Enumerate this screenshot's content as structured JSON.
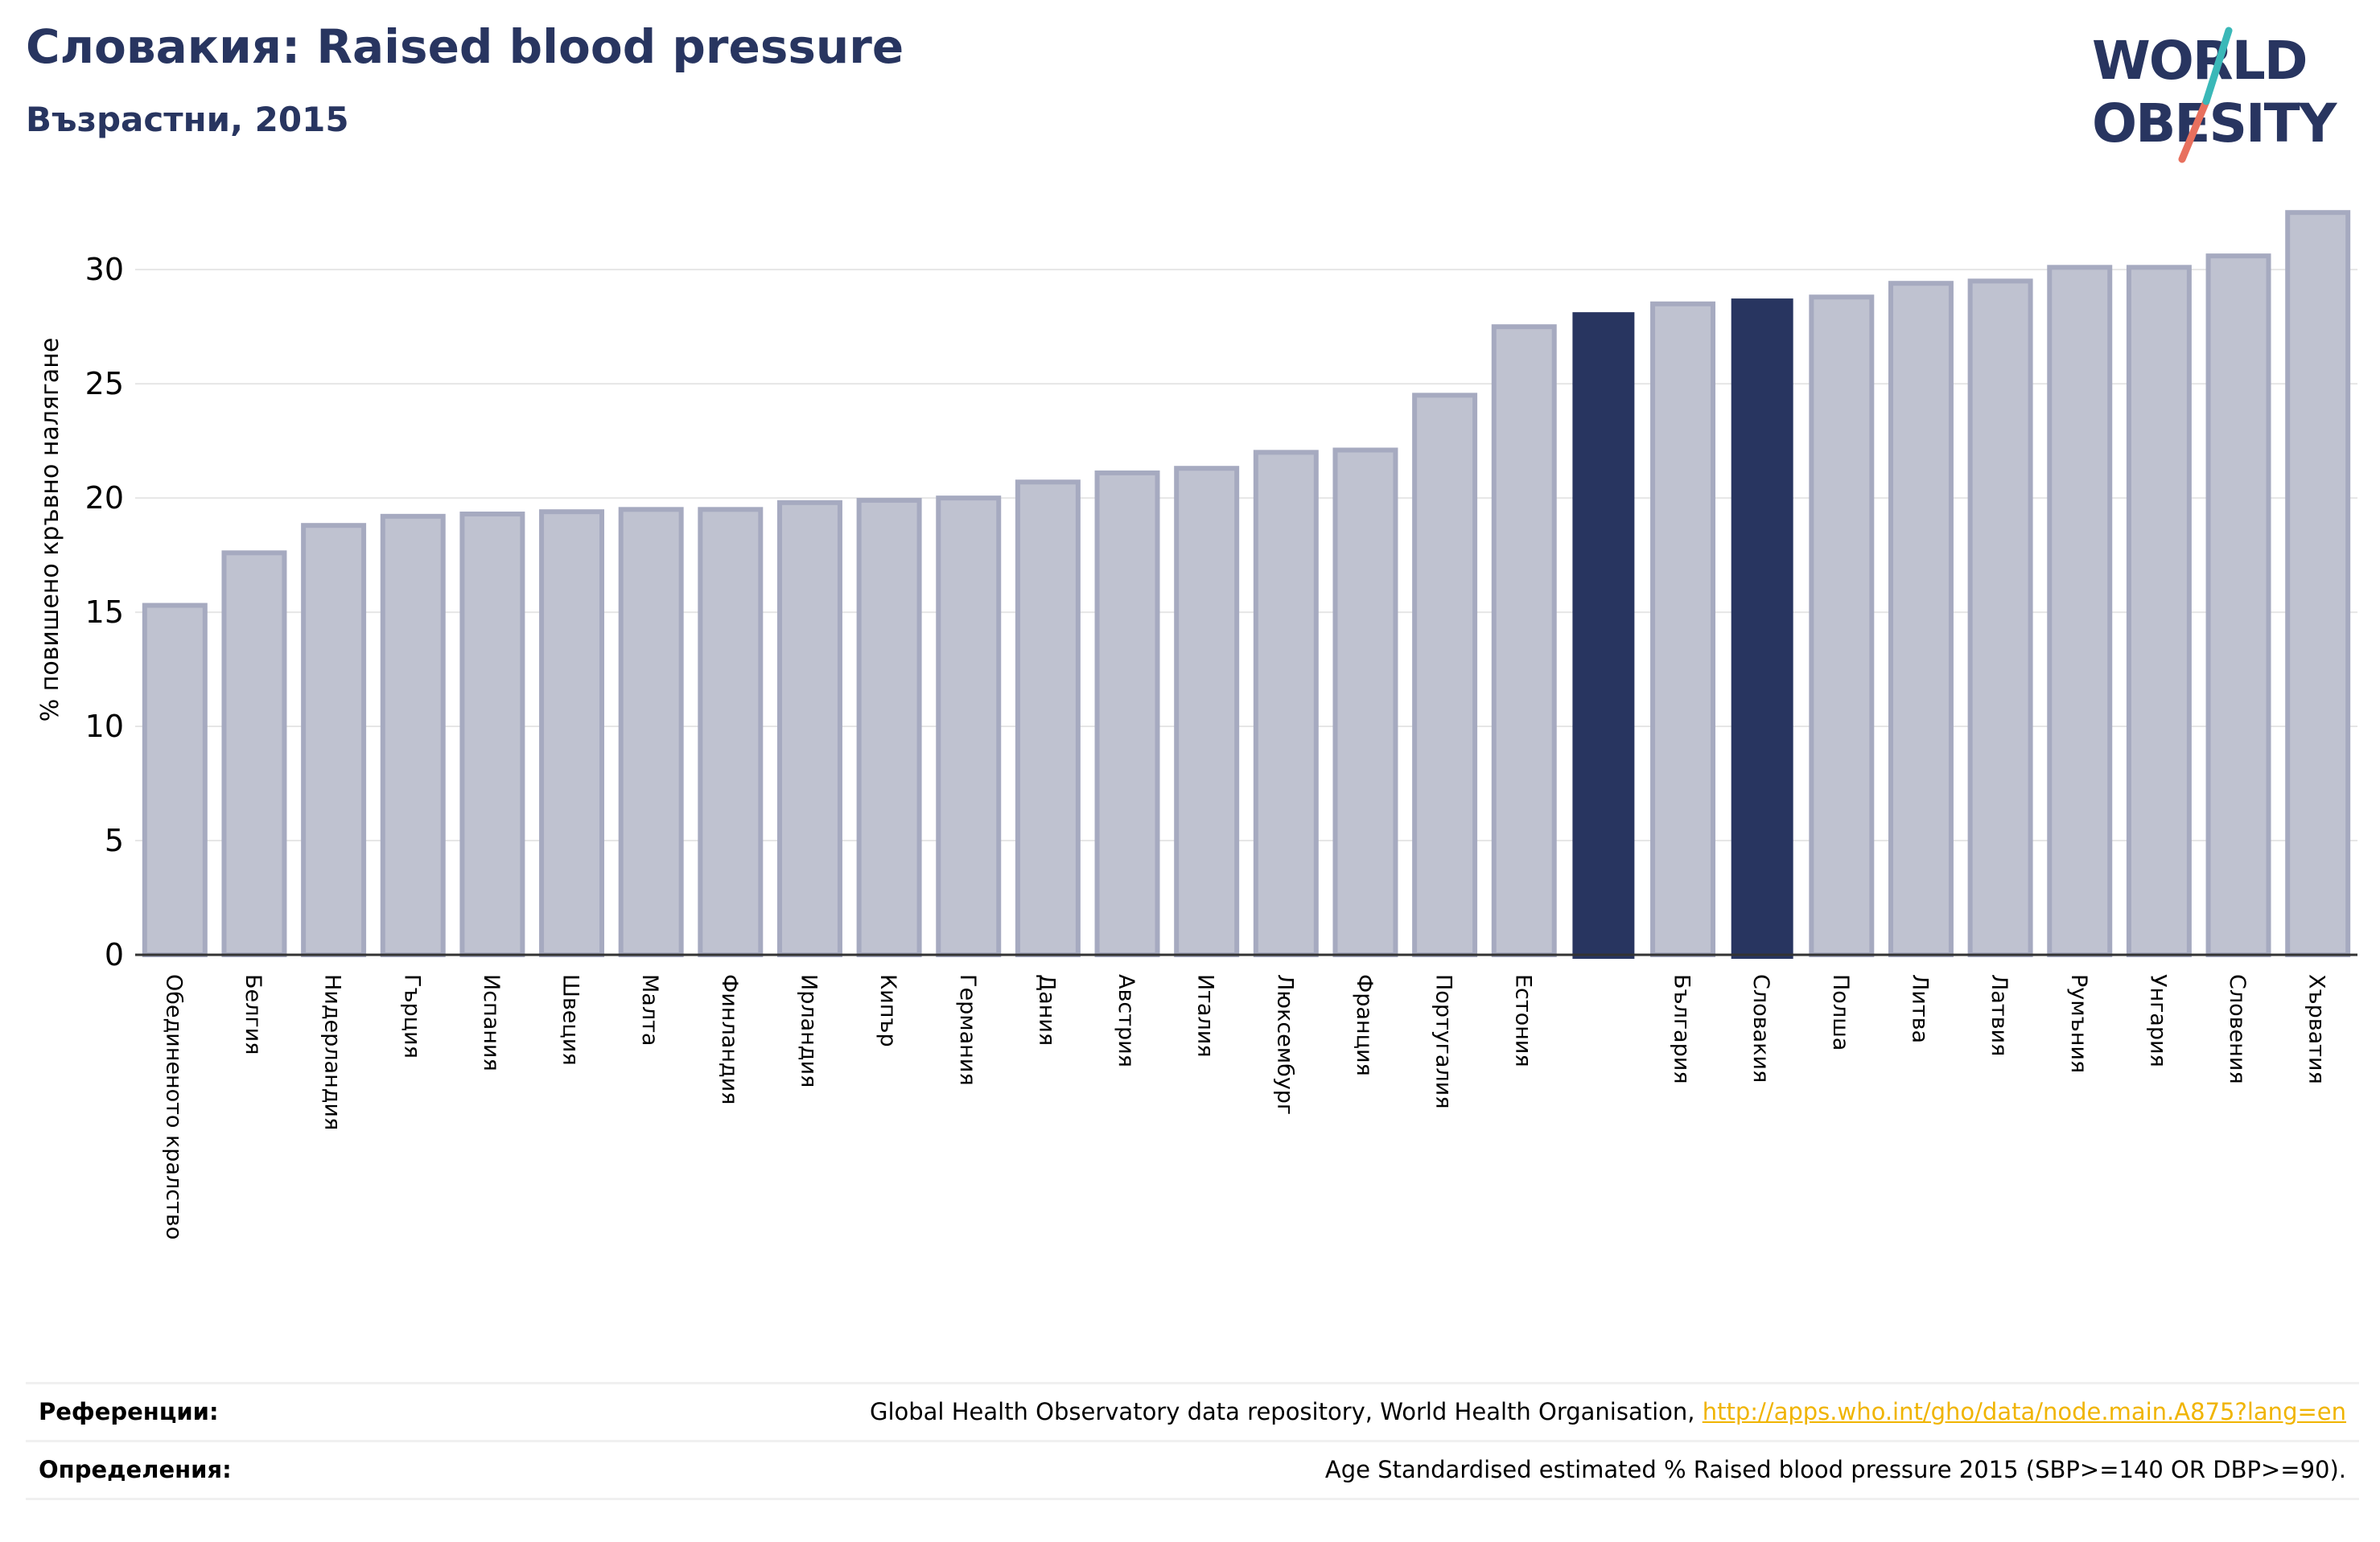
{
  "header": {
    "title": "Словакия: Raised blood pressure",
    "subtitle": "Възрастни, 2015"
  },
  "logo": {
    "line1": "WORLD",
    "line2": "OBESITY"
  },
  "colors": {
    "bar": "#bfc2d0",
    "bar_border": "#a6aac0",
    "highlight": "#283560",
    "title": "#283560",
    "link": "#f0b400"
  },
  "chart_data": {
    "type": "bar",
    "ylabel": "% повишено кръвно налягане",
    "xlabel": "",
    "ylim": [
      0,
      33
    ],
    "yticks": [
      0,
      5,
      10,
      15,
      20,
      25,
      30
    ],
    "grid": true,
    "categories": [
      "Обединеното кралство",
      "Белгия",
      "Нидерландия",
      "Гърция",
      "Испания",
      "Швеция",
      "Малта",
      "Финландия",
      "Ирландия",
      "Кипър",
      "Германия",
      "Дания",
      "Австрия",
      "Италия",
      "Люксембург",
      "Франция",
      "Португалия",
      "Естония",
      "",
      "България",
      "Словакия",
      "Полша",
      "Литва",
      "Латвия",
      "Румъния",
      "Унгария",
      "Словения",
      "Хърватия"
    ],
    "values": [
      15.3,
      17.6,
      18.8,
      19.2,
      19.3,
      19.4,
      19.5,
      19.5,
      19.8,
      19.9,
      20.0,
      20.7,
      21.1,
      21.3,
      22.0,
      22.1,
      24.5,
      27.5,
      28.1,
      28.5,
      28.7,
      28.8,
      29.4,
      29.5,
      30.1,
      30.1,
      30.6,
      32.5
    ],
    "highlighted": [
      18,
      20
    ]
  },
  "footer": {
    "references_label": "Референции:",
    "references_text": "Global Health Observatory data repository, World Health Organisation, ",
    "references_link": "http://apps.who.int/gho/data/node.main.A875?lang=en",
    "definitions_label": "Определения:",
    "definitions_text": "Age Standardised estimated % Raised blood pressure 2015 (SBP>=140 OR DBP>=90)."
  }
}
